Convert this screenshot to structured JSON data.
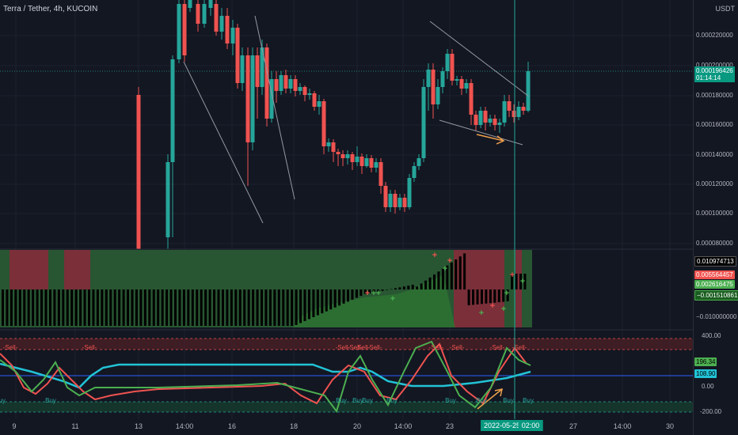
{
  "header": {
    "symbol": "Terra / Tether, 4h, KUCOIN",
    "currency": "USDT"
  },
  "price_axis": {
    "ticks": [
      "0.000220000",
      "0.000200000",
      "0.000180000",
      "0.000160000",
      "0.000140000",
      "0.000120000",
      "0.000100000",
      "0.000080000"
    ],
    "last_price": "0.000196426",
    "countdown": "01:14:14"
  },
  "osc1_axis": {
    "labels": [
      "0.010974713",
      "0.005564457",
      "0.002616475",
      "−0.001510861",
      "−0.010000000"
    ]
  },
  "osc2_axis": {
    "ticks": [
      "400.00",
      "200.00",
      "0.00",
      "-200.00"
    ],
    "value_a": "196.34",
    "value_b": "108.90"
  },
  "time_axis": {
    "labels": [
      "9",
      "11",
      "13",
      "14:00",
      "16",
      "18",
      "20",
      "14:00",
      "23",
      "27",
      "14:00",
      "30"
    ],
    "cursor_date": "2022-05-25",
    "cursor_time": "02:00"
  },
  "signals": {
    "sell": "Sell",
    "buy": "Buy"
  },
  "colors": {
    "up": "#26a69a",
    "down": "#ef5350",
    "accent": "#089981",
    "bg": "#131722",
    "cyan": "#22c3d6"
  }
}
